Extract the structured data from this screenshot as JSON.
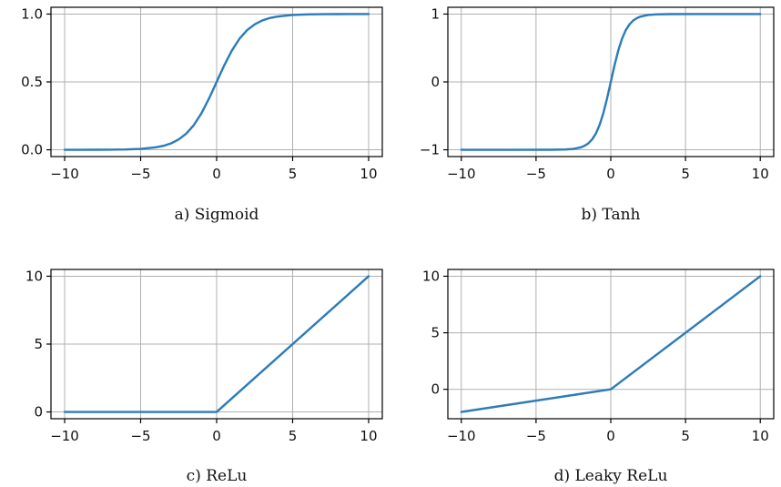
{
  "colors": {
    "series": "#2b7bba",
    "grid": "#b0b0b0",
    "frame": "#000000"
  },
  "chart_data": [
    {
      "type": "line",
      "caption": "a) Sigmoid",
      "xlim": [
        -10.9,
        10.9
      ],
      "ylim": [
        -0.05,
        1.05
      ],
      "xticks": [
        -10,
        -5,
        0,
        5,
        10
      ],
      "xtick_labels": [
        "−10",
        "−5",
        "0",
        "5",
        "10"
      ],
      "yticks": [
        0,
        0.5,
        1.0
      ],
      "ytick_labels": [
        "0.0",
        "0.5",
        "1.0"
      ],
      "grid": true,
      "series": [
        {
          "x": [
            -10,
            -9,
            -8,
            -7,
            -6,
            -5,
            -4,
            -3.5,
            -3,
            -2.5,
            -2,
            -1.5,
            -1,
            -0.5,
            0,
            0.5,
            1,
            1.5,
            2,
            2.5,
            3,
            3.5,
            4,
            5,
            6,
            7,
            8,
            9,
            10
          ],
          "y": [
            0.0,
            0.0001,
            0.0003,
            0.0009,
            0.0025,
            0.0067,
            0.018,
            0.029,
            0.047,
            0.076,
            0.119,
            0.182,
            0.269,
            0.378,
            0.5,
            0.622,
            0.731,
            0.818,
            0.881,
            0.924,
            0.953,
            0.971,
            0.982,
            0.9933,
            0.9975,
            0.9991,
            0.9997,
            0.9999,
            1.0
          ]
        }
      ]
    },
    {
      "type": "line",
      "caption": "b) Tanh",
      "xlim": [
        -10.9,
        10.9
      ],
      "ylim": [
        -1.1,
        1.1
      ],
      "xticks": [
        -10,
        -5,
        0,
        5,
        10
      ],
      "xtick_labels": [
        "−10",
        "−5",
        "0",
        "5",
        "10"
      ],
      "yticks": [
        -1,
        0,
        1
      ],
      "ytick_labels": [
        "−1",
        "0",
        "1"
      ],
      "grid": true,
      "series": [
        {
          "x": [
            -10,
            -8,
            -6,
            -4,
            -3,
            -2.5,
            -2,
            -1.75,
            -1.5,
            -1.25,
            -1,
            -0.75,
            -0.5,
            -0.25,
            0,
            0.25,
            0.5,
            0.75,
            1,
            1.25,
            1.5,
            1.75,
            2,
            2.5,
            3,
            4,
            6,
            8,
            10
          ],
          "y": [
            -1.0,
            -1.0,
            -1.0,
            -0.9993,
            -0.995,
            -0.987,
            -0.964,
            -0.941,
            -0.905,
            -0.848,
            -0.762,
            -0.635,
            -0.462,
            -0.245,
            0,
            0.245,
            0.462,
            0.635,
            0.762,
            0.848,
            0.905,
            0.941,
            0.964,
            0.987,
            0.995,
            0.9993,
            1.0,
            1.0,
            1.0
          ]
        }
      ]
    },
    {
      "type": "line",
      "caption": "c) ReLu",
      "xlim": [
        -10.9,
        10.9
      ],
      "ylim": [
        -0.5,
        10.5
      ],
      "xticks": [
        -10,
        -5,
        0,
        5,
        10
      ],
      "xtick_labels": [
        "−10",
        "−5",
        "0",
        "5",
        "10"
      ],
      "yticks": [
        0,
        5,
        10
      ],
      "ytick_labels": [
        "0",
        "5",
        "10"
      ],
      "grid": true,
      "series": [
        {
          "x": [
            -10,
            0,
            10
          ],
          "y": [
            0,
            0,
            10
          ]
        }
      ]
    },
    {
      "type": "line",
      "caption": "d) Leaky ReLu",
      "xlim": [
        -10.9,
        10.9
      ],
      "ylim": [
        -2.6,
        10.6
      ],
      "xticks": [
        -10,
        -5,
        0,
        5,
        10
      ],
      "xtick_labels": [
        "−10",
        "−5",
        "0",
        "5",
        "10"
      ],
      "yticks": [
        0,
        5,
        10
      ],
      "ytick_labels": [
        "0",
        "5",
        "10"
      ],
      "grid": true,
      "series": [
        {
          "x": [
            -10,
            0,
            10
          ],
          "y": [
            -2,
            0,
            10
          ]
        }
      ]
    }
  ]
}
